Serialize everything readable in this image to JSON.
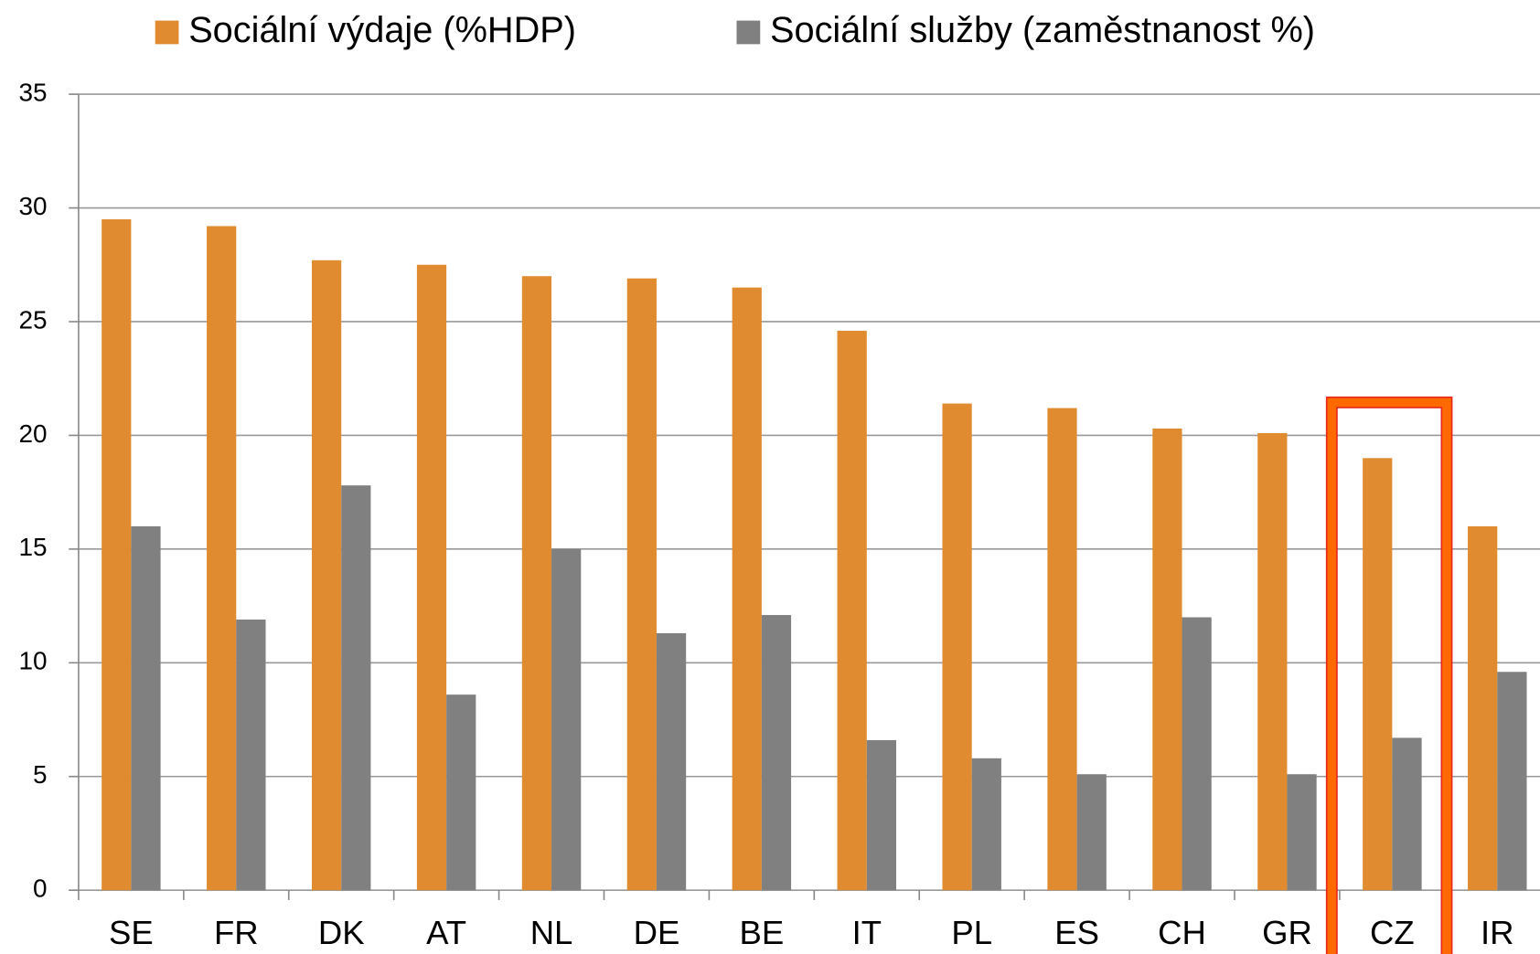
{
  "chart_data": {
    "type": "bar",
    "categories": [
      "SE",
      "FR",
      "DK",
      "AT",
      "NL",
      "DE",
      "BE",
      "IT",
      "PL",
      "ES",
      "CH",
      "GR",
      "CZ",
      "IR"
    ],
    "series": [
      {
        "name": "Sociální výdaje (%HDP)",
        "color": "#e08b2f",
        "values": [
          29.5,
          29.2,
          27.7,
          27.5,
          27.0,
          26.9,
          26.5,
          24.6,
          21.4,
          21.2,
          20.3,
          20.1,
          19.0,
          16.0
        ]
      },
      {
        "name": "Sociální služby (zaměstnanost %)",
        "color": "#808080",
        "values": [
          16.0,
          11.9,
          17.8,
          8.6,
          15.0,
          11.3,
          12.1,
          6.6,
          5.8,
          5.1,
          12.0,
          5.1,
          6.7,
          9.6
        ]
      }
    ],
    "ylim": [
      0,
      35
    ],
    "yticks": [
      0,
      5,
      10,
      15,
      20,
      25,
      30,
      35
    ],
    "grid": true,
    "legend": "top"
  }
}
